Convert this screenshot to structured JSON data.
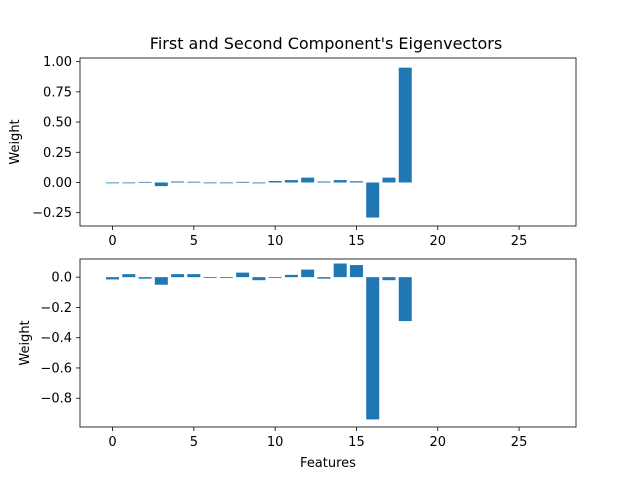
{
  "chart_data": [
    {
      "type": "bar",
      "title": "First and Second Component's Eigenvectors",
      "xlabel": "",
      "ylabel": "Weight",
      "xlim": [
        -2,
        28.5
      ],
      "ylim": [
        -0.36,
        1.03
      ],
      "xticks": [
        0,
        5,
        10,
        15,
        20,
        25
      ],
      "yticks": [
        -0.25,
        0.0,
        0.25,
        0.5,
        0.75,
        1.0
      ],
      "ytick_labels": [
        "−0.25",
        "0.00",
        "0.25",
        "0.50",
        "0.75",
        "1.00"
      ],
      "color": "#1f77b4",
      "x": [
        0,
        1,
        2,
        3,
        4,
        5,
        6,
        7,
        8,
        9,
        10,
        11,
        12,
        13,
        14,
        15,
        16,
        17,
        18
      ],
      "values": [
        0.0,
        0.0,
        0.005,
        -0.03,
        0.008,
        0.006,
        0.0,
        0.0,
        0.005,
        -0.007,
        0.012,
        0.02,
        0.04,
        0.008,
        0.02,
        0.01,
        -0.29,
        0.04,
        0.95
      ]
    },
    {
      "type": "bar",
      "title": "",
      "xlabel": "Features",
      "ylabel": "Weight",
      "xlim": [
        -2,
        28.5
      ],
      "ylim": [
        -0.99,
        0.12
      ],
      "xticks": [
        0,
        5,
        10,
        15,
        20,
        25
      ],
      "yticks": [
        -0.8,
        -0.6,
        -0.4,
        -0.2,
        0.0
      ],
      "ytick_labels": [
        "−0.8",
        "−0.6",
        "−0.4",
        "−0.2",
        "0.0"
      ],
      "color": "#1f77b4",
      "x": [
        0,
        1,
        2,
        3,
        4,
        5,
        6,
        7,
        8,
        9,
        10,
        11,
        12,
        13,
        14,
        15,
        16,
        17,
        18
      ],
      "values": [
        -0.015,
        0.02,
        -0.01,
        -0.05,
        0.02,
        0.02,
        0.0,
        0.0,
        0.03,
        -0.02,
        0.0,
        0.015,
        0.05,
        -0.01,
        0.09,
        0.08,
        -0.94,
        -0.02,
        -0.29
      ]
    }
  ]
}
